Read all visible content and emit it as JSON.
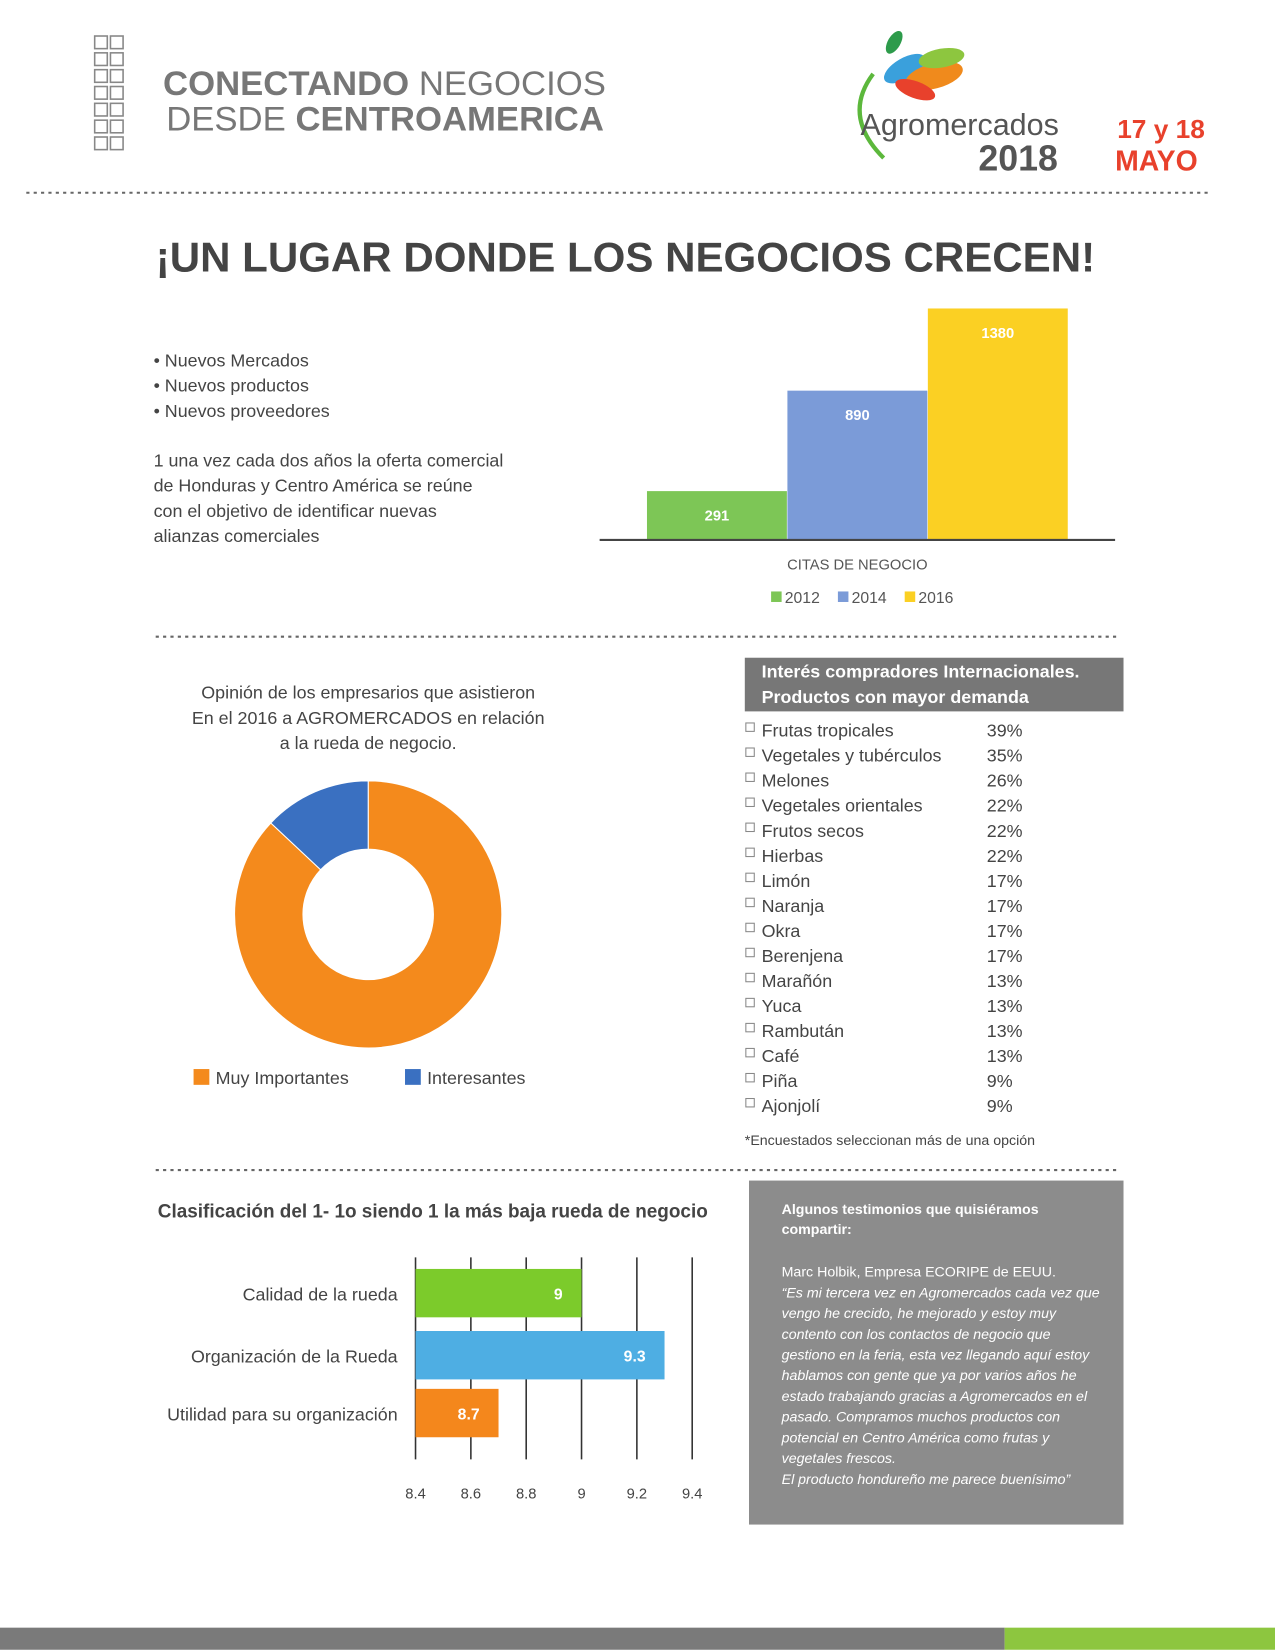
{
  "header": {
    "tagline_1_bold": "CONECTANDO",
    "tagline_1_light": "NEGOCIOS",
    "tagline_2_light": "DESDE",
    "tagline_2_bold": "CENTROAMERICA",
    "brand": "Agromercados",
    "year": "2018",
    "dates": "17 y 18",
    "month": "MAYO"
  },
  "headline": "¡UN LUGAR DONDE LOS NEGOCIOS CRECEN!",
  "bullets": [
    "• Nuevos Mercados",
    "• Nuevos productos",
    "• Nuevos proveedores"
  ],
  "description": [
    "1 una vez  cada  dos años la oferta comercial",
    "de Honduras y Centro América se reúne",
    "con el objetivo de identificar nuevas",
    "alianzas comerciales"
  ],
  "chart_data": [
    {
      "type": "bar",
      "categories": [
        "CITAS DE NEGOCIO"
      ],
      "series": [
        {
          "name": "2012",
          "color": "#7dc656",
          "values": [
            291
          ]
        },
        {
          "name": "2014",
          "color": "#7b9bd8",
          "values": [
            890
          ]
        },
        {
          "name": "2016",
          "color": "#fbd023",
          "values": [
            1380
          ]
        }
      ],
      "ylim": [
        0,
        1380
      ],
      "legend": "bottom"
    },
    {
      "type": "donut",
      "title": [
        "Opinión de los empresarios que asistieron",
        "En el 2016 a  AGROMERCADOS en relación",
        "a la rueda de negocio."
      ],
      "categories": [
        "Muy Importantes",
        "Interesantes"
      ],
      "values": [
        87,
        13
      ],
      "colors": [
        "#f48a1c",
        "#3a70c1"
      ],
      "legend": "bottom"
    },
    {
      "type": "hbar",
      "title": "Clasificación del 1- 1o siendo 1 la más baja rueda de negocio",
      "categories": [
        "Calidad de la rueda",
        "Organización de la Rueda",
        "Utilidad para su organización"
      ],
      "values": [
        9,
        9.3,
        8.7
      ],
      "colors": [
        "#7ccb2b",
        "#4eaee3",
        "#f4871c"
      ],
      "xlim": [
        8.4,
        9.4
      ],
      "xticks": [
        8.4,
        8.6,
        8.8,
        9,
        9.2,
        9.4
      ],
      "grid": true
    }
  ],
  "table": {
    "title": [
      "Interés compradores  Internacionales.",
      "Productos con mayor demanda"
    ],
    "rows": [
      [
        "Frutas tropicales",
        "39%"
      ],
      [
        "Vegetales y tubérculos",
        "35%"
      ],
      [
        "Melones",
        "26%"
      ],
      [
        "Vegetales orientales",
        "22%"
      ],
      [
        "Frutos secos",
        "22%"
      ],
      [
        "Hierbas",
        "22%"
      ],
      [
        "Limón",
        "17%"
      ],
      [
        "Naranja",
        "17%"
      ],
      [
        "Okra",
        "17%"
      ],
      [
        "Berenjena",
        "17%"
      ],
      [
        "Marañón",
        "13%"
      ],
      [
        "Yuca",
        "13%"
      ],
      [
        "Rambután",
        "13%"
      ],
      [
        "Café",
        "13%"
      ],
      [
        "Piña",
        "9%"
      ],
      [
        "Ajonjolí",
        "9%"
      ]
    ],
    "footnote": "*Encuestados seleccionan más de una  opción"
  },
  "testimonial": {
    "title": [
      "Algunos testimonios que quisiéramos",
      "compartir:"
    ],
    "author": "Marc Holbik, Empresa ECORIPE de EEUU.",
    "quote": [
      "“Es mi tercera vez en Agromercados cada vez que",
      "vengo he crecido, he mejorado y estoy muy",
      "contento con los contactos de negocio que",
      "gestiono en la feria, esta vez llegando aquí estoy",
      "hablamos con gente que ya por varios años he",
      "estado trabajando gracias a Agromercados en el",
      "pasado. Compramos muchos productos con",
      "potencial en Centro América como frutas y",
      "vegetales frescos.",
      "El producto hondureño me parece buenísimo”"
    ]
  }
}
